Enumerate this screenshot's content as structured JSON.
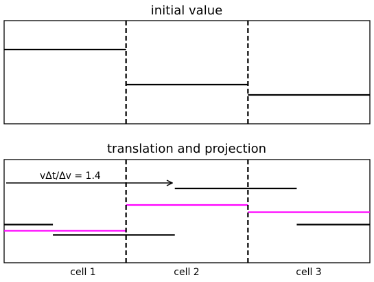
{
  "figure": {
    "top_title": "initial value",
    "bottom_title": "translation and projection",
    "annotation": "vΔt/Δv = 1.4",
    "cell_labels": [
      "cell 1",
      "cell 2",
      "cell 3"
    ]
  },
  "chart_data": [
    {
      "type": "step",
      "title": "initial value",
      "x_range": [
        0,
        3
      ],
      "cell_boundaries": [
        1,
        2
      ],
      "segments": [
        {
          "x": [
            0,
            1
          ],
          "value": 0.72,
          "color": "#000000"
        },
        {
          "x": [
            1,
            2
          ],
          "value": 0.38,
          "color": "#000000"
        },
        {
          "x": [
            2,
            3
          ],
          "value": 0.28,
          "color": "#000000"
        }
      ]
    },
    {
      "type": "step",
      "title": "translation and projection",
      "x_range": [
        0,
        3
      ],
      "cell_boundaries": [
        1,
        2
      ],
      "shift": 1.4,
      "translated_segments": [
        {
          "x": [
            0,
            0.4
          ],
          "value": 0.37,
          "color": "#000000"
        },
        {
          "x": [
            0.4,
            1.4
          ],
          "value": 0.27,
          "color": "#000000"
        },
        {
          "x": [
            1.4,
            2.4
          ],
          "value": 0.72,
          "color": "#000000"
        },
        {
          "x": [
            2.4,
            3
          ],
          "value": 0.37,
          "color": "#000000"
        }
      ],
      "projected_segments": [
        {
          "x": [
            0,
            1
          ],
          "value": 0.31,
          "color": "#ff00ff"
        },
        {
          "x": [
            1,
            2
          ],
          "value": 0.56,
          "color": "#ff00ff"
        },
        {
          "x": [
            2,
            3
          ],
          "value": 0.49,
          "color": "#ff00ff"
        }
      ]
    }
  ]
}
